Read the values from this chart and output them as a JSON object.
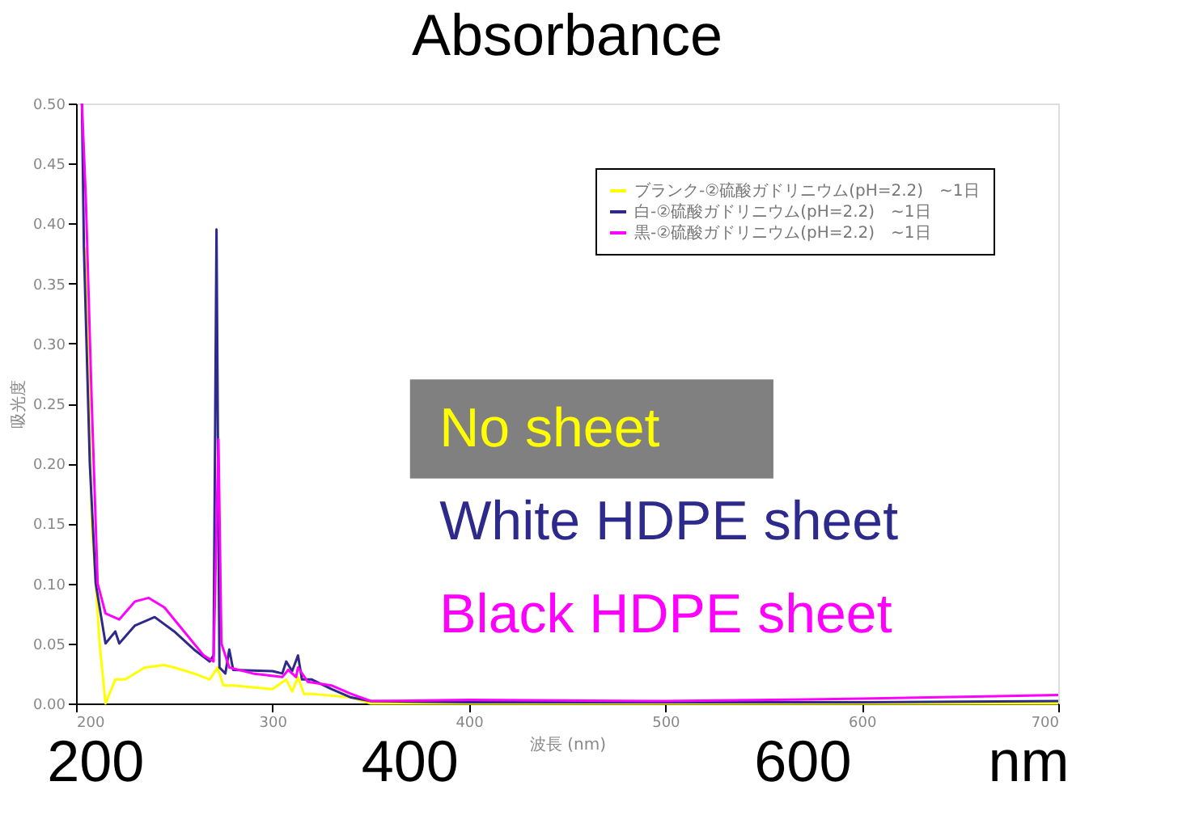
{
  "chart_data": {
    "type": "line",
    "title": "Absorbance",
    "xlabel": "波長 (nm)",
    "ylabel": "吸光度",
    "xlim": [
      200,
      700
    ],
    "xticks": [
      200,
      300,
      400,
      500,
      600,
      700
    ],
    "ylim": [
      0,
      0.5
    ],
    "yticks": [
      {
        "value": 0,
        "label": "0.00"
      },
      {
        "value": 0.05,
        "label": "0.05"
      },
      {
        "value": 0.1,
        "label": "0.10"
      },
      {
        "value": 0.15,
        "label": "0.15"
      },
      {
        "value": 0.2,
        "label": "0.20"
      },
      {
        "value": 0.25,
        "label": "0.25"
      },
      {
        "value": 0.3,
        "label": "0.30"
      },
      {
        "value": 0.35,
        "label": "0.35"
      },
      {
        "value": 0.4,
        "label": "0.40"
      },
      {
        "value": 0.45,
        "label": "0.45"
      },
      {
        "value": 0.5,
        "label": "0.50"
      }
    ],
    "legend": "top right",
    "grid": false,
    "marker": "none",
    "line_style": "solid",
    "annotations": [
      "No sheet",
      "White HDPE sheet",
      "Black HDPE sheet",
      "200",
      "400",
      "600",
      "nm"
    ],
    "series": [
      {
        "name": "ブランク-②硫酸ガドリニウム(pH=2.2)　~1日",
        "color": "#ffff00",
        "x": [
          205,
          208,
          212,
          215,
          220,
          225,
          235,
          245,
          250,
          260,
          268,
          272,
          275,
          280,
          300,
          307,
          310,
          313,
          316,
          320,
          340,
          350,
          400,
          500,
          600,
          700
        ],
        "values": [
          0.38,
          0.15,
          0.05,
          0.0,
          0.02,
          0.02,
          0.03,
          0.032,
          0.03,
          0.025,
          0.02,
          0.03,
          0.015,
          0.015,
          0.012,
          0.02,
          0.01,
          0.022,
          0.008,
          0.008,
          0.005,
          0.0,
          0.0,
          0.0,
          0.0,
          0.0
        ]
      },
      {
        "name": "白-②硫酸ガドリニウム(pH=2.2)　~1日",
        "color": "#2e2a8c",
        "x": [
          203,
          204,
          207,
          210,
          215,
          220,
          222,
          230,
          240,
          250,
          260,
          268,
          270,
          271.5,
          273,
          276,
          278,
          280,
          300,
          305,
          307,
          310,
          313,
          315,
          320,
          330,
          340,
          350,
          400,
          500,
          600,
          700
        ],
        "values": [
          0.5,
          0.38,
          0.2,
          0.1,
          0.05,
          0.06,
          0.05,
          0.065,
          0.072,
          0.06,
          0.045,
          0.035,
          0.04,
          0.395,
          0.03,
          0.025,
          0.045,
          0.028,
          0.027,
          0.025,
          0.035,
          0.027,
          0.04,
          0.02,
          0.02,
          0.012,
          0.005,
          0.002,
          0.001,
          0.001,
          0.001,
          0.002
        ]
      },
      {
        "name": "黒-②硫酸ガドリニウム(pH=2.2)　~1日",
        "color": "#ff00ff",
        "x": [
          203,
          205,
          208,
          211,
          215,
          222,
          230,
          237,
          245,
          255,
          265,
          270,
          272.5,
          274,
          278,
          290,
          305,
          308,
          312,
          313,
          318,
          330,
          340,
          350,
          400,
          500,
          600,
          700
        ],
        "values": [
          0.5,
          0.42,
          0.25,
          0.1,
          0.075,
          0.07,
          0.085,
          0.088,
          0.08,
          0.06,
          0.04,
          0.035,
          0.22,
          0.05,
          0.03,
          0.025,
          0.022,
          0.028,
          0.022,
          0.03,
          0.018,
          0.015,
          0.008,
          0.002,
          0.003,
          0.002,
          0.004,
          0.007
        ]
      }
    ]
  }
}
